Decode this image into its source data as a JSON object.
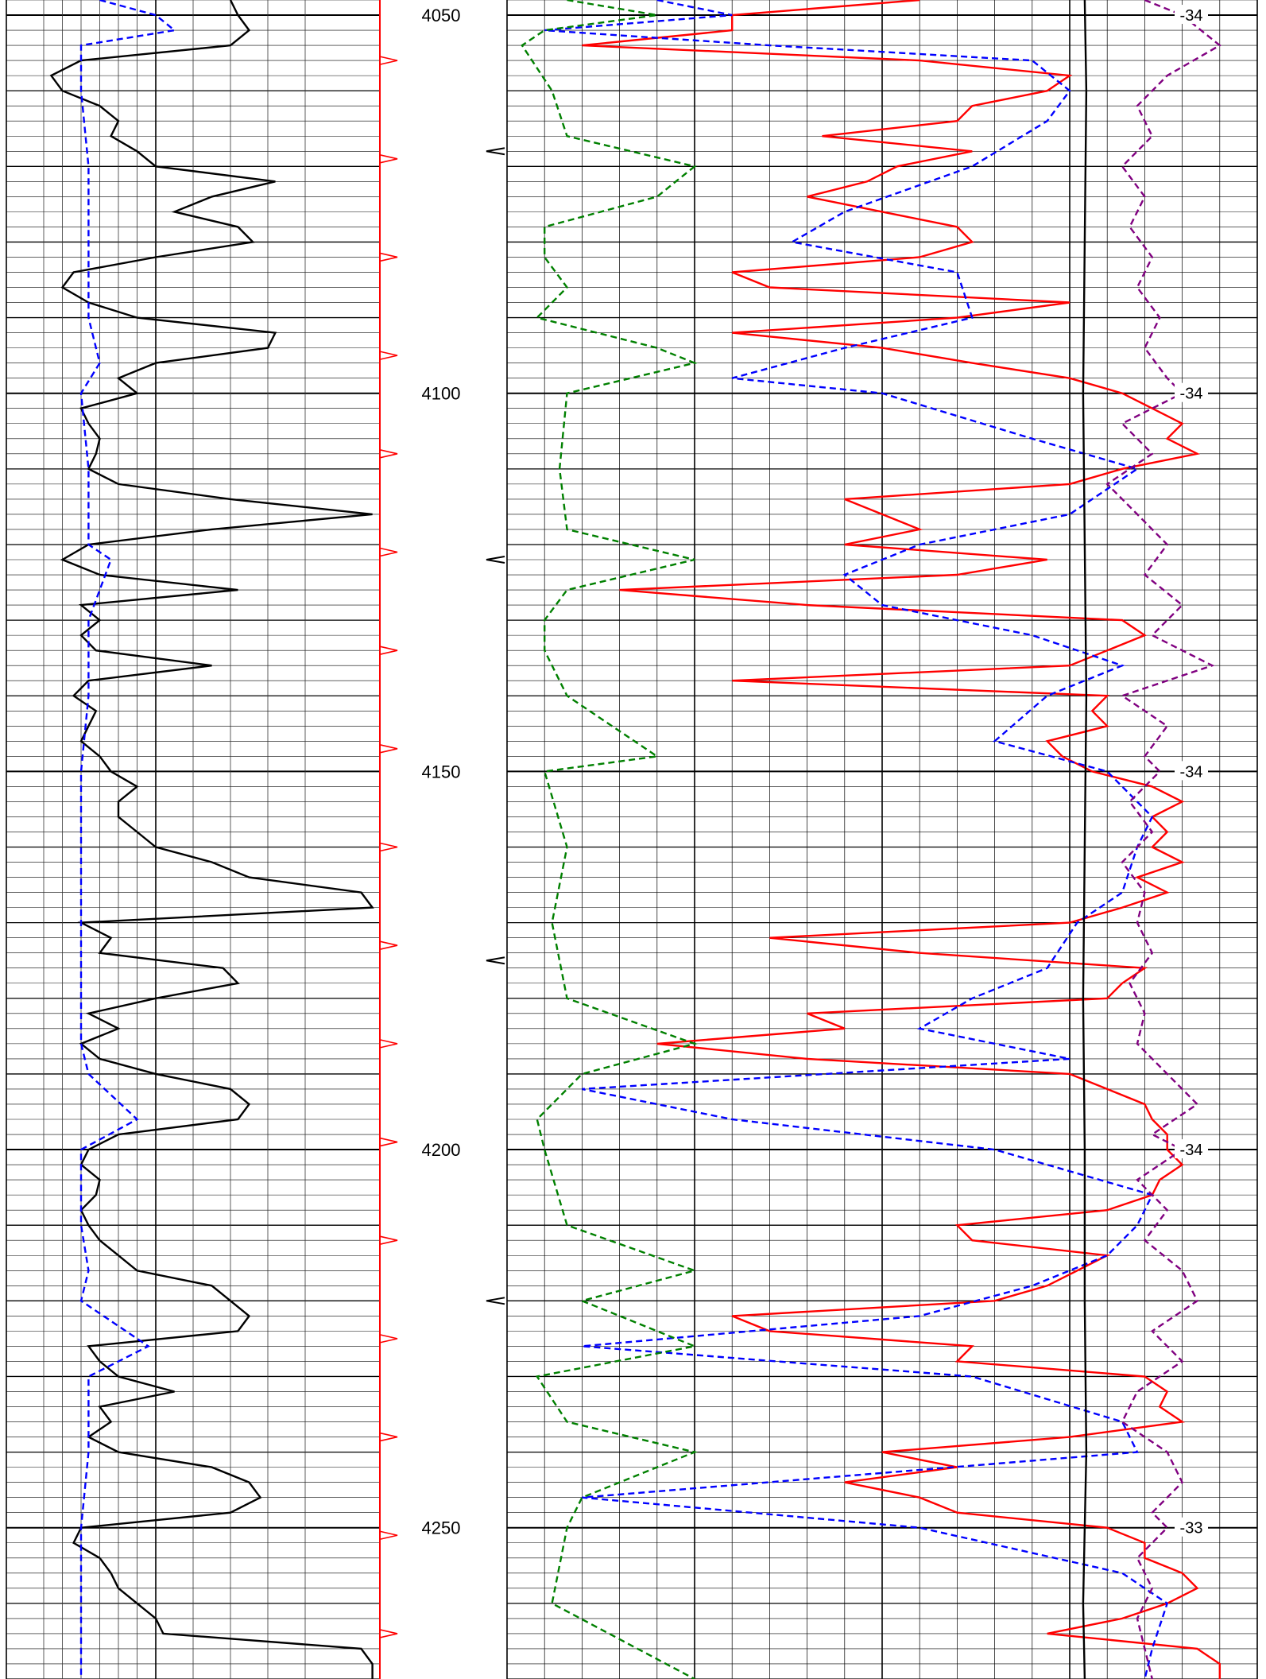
{
  "chart_data": {
    "type": "line",
    "title": "",
    "depth_axis": {
      "range": [
        4048,
        4270
      ],
      "major_ticks": [
        4050,
        4100,
        4150,
        4200,
        4250
      ],
      "labels": [
        "4050",
        "4100",
        "4150",
        "4200",
        "4250"
      ]
    },
    "tracks": [
      {
        "name": "track-1",
        "series": [
          {
            "style": "solid",
            "color": "#000000",
            "depth": [
              4048,
              4050,
              4052,
              4054,
              4056,
              4058,
              4060,
              4062,
              4064,
              4066,
              4068,
              4070,
              4072,
              4074,
              4076,
              4078,
              4080,
              4082,
              4084,
              4086,
              4088,
              4090,
              4092,
              4094,
              4096,
              4098,
              4100,
              4102,
              4104,
              4106,
              4108,
              4110,
              4112,
              4114,
              4116,
              4118,
              4120,
              4122,
              4124,
              4126,
              4128,
              4130,
              4132,
              4134,
              4136,
              4138,
              4140,
              4142,
              4144,
              4146,
              4148,
              4150,
              4152,
              4154,
              4156,
              4158,
              4160,
              4162,
              4164,
              4166,
              4168,
              4170,
              4172,
              4174,
              4176,
              4178,
              4180,
              4182,
              4184,
              4186,
              4188,
              4190,
              4192,
              4194,
              4196,
              4198,
              4200,
              4202,
              4204,
              4206,
              4208,
              4210,
              4212,
              4214,
              4216,
              4218,
              4220,
              4222,
              4224,
              4226,
              4228,
              4230,
              4232,
              4234,
              4236,
              4238,
              4240,
              4242,
              4244,
              4246,
              4248,
              4250,
              4252,
              4254,
              4256,
              4258,
              4260,
              4262,
              4264,
              4266,
              4268,
              4270
            ],
            "value": [
              0.6,
              0.62,
              0.65,
              0.6,
              0.2,
              0.12,
              0.15,
              0.25,
              0.3,
              0.28,
              0.35,
              0.4,
              0.72,
              0.55,
              0.45,
              0.62,
              0.66,
              0.4,
              0.18,
              0.15,
              0.22,
              0.35,
              0.72,
              0.7,
              0.4,
              0.3,
              0.35,
              0.2,
              0.22,
              0.25,
              0.24,
              0.22,
              0.3,
              0.6,
              0.98,
              0.55,
              0.22,
              0.15,
              0.25,
              0.62,
              0.2,
              0.25,
              0.2,
              0.24,
              0.55,
              0.22,
              0.18,
              0.24,
              0.22,
              0.2,
              0.25,
              0.28,
              0.35,
              0.3,
              0.3,
              0.35,
              0.4,
              0.55,
              0.65,
              0.95,
              0.98,
              0.2,
              0.28,
              0.25,
              0.58,
              0.62,
              0.4,
              0.22,
              0.3,
              0.2,
              0.25,
              0.4,
              0.6,
              0.65,
              0.62,
              0.3,
              0.22,
              0.2,
              0.25,
              0.24,
              0.2,
              0.22,
              0.25,
              0.3,
              0.35,
              0.55,
              0.6,
              0.65,
              0.62,
              0.22,
              0.25,
              0.3,
              0.45,
              0.25,
              0.28,
              0.22,
              0.3,
              0.55,
              0.65,
              0.68,
              0.6,
              0.2,
              0.18,
              0.25,
              0.28,
              0.3,
              0.35,
              0.4,
              0.42,
              0.95,
              0.98,
              0.98
            ]
          },
          {
            "style": "dashed",
            "color": "#0000ff",
            "depth": [
              4048,
              4050,
              4052,
              4054,
              4060,
              4070,
              4080,
              4090,
              4096,
              4100,
              4110,
              4120,
              4122,
              4126,
              4130,
              4140,
              4150,
              4160,
              4170,
              4180,
              4186,
              4190,
              4196,
              4200,
              4210,
              4216,
              4220,
              4226,
              4230,
              4240,
              4250,
              4260,
              4270
            ],
            "value": [
              0.25,
              0.4,
              0.45,
              0.2,
              0.2,
              0.22,
              0.22,
              0.22,
              0.25,
              0.2,
              0.22,
              0.22,
              0.28,
              0.25,
              0.22,
              0.22,
              0.2,
              0.2,
              0.2,
              0.2,
              0.2,
              0.22,
              0.35,
              0.2,
              0.2,
              0.22,
              0.2,
              0.38,
              0.22,
              0.22,
              0.2,
              0.2,
              0.2
            ]
          }
        ]
      },
      {
        "name": "track-2",
        "series": [
          {
            "style": "solid",
            "color": "#ff0000",
            "depth": [
              4048,
              4050,
              4052,
              4054,
              4056,
              4058,
              4060,
              4062,
              4064,
              4066,
              4068,
              4070,
              4072,
              4074,
              4076,
              4078,
              4080,
              4082,
              4084,
              4086,
              4088,
              4090,
              4092,
              4094,
              4096,
              4098,
              4100,
              4102,
              4104,
              4106,
              4108,
              4110,
              4112,
              4114,
              4116,
              4118,
              4120,
              4122,
              4124,
              4126,
              4128,
              4130,
              4132,
              4134,
              4136,
              4138,
              4140,
              4142,
              4144,
              4146,
              4148,
              4150,
              4152,
              4154,
              4156,
              4158,
              4160,
              4162,
              4164,
              4166,
              4168,
              4170,
              4172,
              4174,
              4176,
              4178,
              4180,
              4182,
              4184,
              4186,
              4188,
              4190,
              4192,
              4194,
              4196,
              4198,
              4200,
              4202,
              4204,
              4206,
              4208,
              4210,
              4212,
              4214,
              4216,
              4218,
              4220,
              4222,
              4224,
              4226,
              4228,
              4230,
              4232,
              4234,
              4236,
              4238,
              4240,
              4242,
              4244,
              4246,
              4248,
              4250,
              4252,
              4254,
              4256,
              4258,
              4260,
              4262,
              4264,
              4266,
              4268,
              4270
            ],
            "value": [
              0.55,
              0.3,
              0.3,
              0.1,
              0.55,
              0.75,
              0.72,
              0.62,
              0.6,
              0.42,
              0.62,
              0.52,
              0.48,
              0.4,
              0.5,
              0.6,
              0.62,
              0.55,
              0.3,
              0.35,
              0.75,
              0.6,
              0.3,
              0.5,
              0.62,
              0.75,
              0.82,
              0.86,
              0.9,
              0.88,
              0.92,
              0.82,
              0.75,
              0.45,
              0.5,
              0.55,
              0.45,
              0.72,
              0.6,
              0.15,
              0.4,
              0.82,
              0.85,
              0.8,
              0.75,
              0.3,
              0.8,
              0.78,
              0.8,
              0.72,
              0.74,
              0.78,
              0.86,
              0.9,
              0.86,
              0.88,
              0.86,
              0.9,
              0.84,
              0.88,
              0.82,
              0.75,
              0.35,
              0.55,
              0.85,
              0.82,
              0.8,
              0.4,
              0.45,
              0.2,
              0.4,
              0.75,
              0.8,
              0.85,
              0.86,
              0.88,
              0.88,
              0.9,
              0.87,
              0.86,
              0.8,
              0.6,
              0.62,
              0.8,
              0.76,
              0.72,
              0.65,
              0.3,
              0.35,
              0.62,
              0.6,
              0.85,
              0.88,
              0.87,
              0.9,
              0.75,
              0.5,
              0.6,
              0.45,
              0.55,
              0.6,
              0.8,
              0.85,
              0.85,
              0.9,
              0.92,
              0.88,
              0.82,
              0.72,
              0.92,
              0.95,
              0.95
            ]
          },
          {
            "style": "dashed",
            "color": "#0000ff",
            "depth": [
              4048,
              4050,
              4052,
              4054,
              4056,
              4060,
              4064,
              4070,
              4076,
              4080,
              4084,
              4090,
              4094,
              4098,
              4100,
              4106,
              4110,
              4116,
              4120,
              4124,
              4128,
              4132,
              4136,
              4140,
              4146,
              4150,
              4156,
              4160,
              4166,
              4170,
              4176,
              4180,
              4184,
              4188,
              4192,
              4196,
              4200,
              4206,
              4210,
              4214,
              4218,
              4222,
              4226,
              4230,
              4236,
              4240,
              4246,
              4250,
              4256,
              4260,
              4266,
              4270
            ],
            "value": [
              0.2,
              0.3,
              0.05,
              0.35,
              0.7,
              0.75,
              0.72,
              0.62,
              0.45,
              0.38,
              0.6,
              0.62,
              0.45,
              0.3,
              0.5,
              0.7,
              0.84,
              0.75,
              0.55,
              0.45,
              0.5,
              0.7,
              0.82,
              0.72,
              0.65,
              0.8,
              0.86,
              0.84,
              0.82,
              0.76,
              0.72,
              0.62,
              0.55,
              0.75,
              0.1,
              0.3,
              0.65,
              0.86,
              0.84,
              0.8,
              0.7,
              0.55,
              0.1,
              0.62,
              0.82,
              0.84,
              0.1,
              0.55,
              0.82,
              0.88,
              0.86,
              0.85
            ]
          },
          {
            "style": "dashed",
            "color": "#008000",
            "depth": [
              4048,
              4050,
              4052,
              4054,
              4060,
              4066,
              4070,
              4074,
              4078,
              4082,
              4086,
              4090,
              4094,
              4096,
              4100,
              4110,
              4118,
              4122,
              4126,
              4130,
              4134,
              4140,
              4148,
              4150,
              4160,
              4170,
              4180,
              4186,
              4190,
              4196,
              4200,
              4210,
              4216,
              4220,
              4226,
              4230,
              4236,
              4240,
              4246,
              4250,
              4260,
              4270
            ],
            "value": [
              0.08,
              0.2,
              0.05,
              0.02,
              0.06,
              0.08,
              0.25,
              0.2,
              0.05,
              0.05,
              0.08,
              0.04,
              0.2,
              0.25,
              0.08,
              0.07,
              0.08,
              0.25,
              0.08,
              0.05,
              0.05,
              0.08,
              0.2,
              0.05,
              0.08,
              0.06,
              0.08,
              0.25,
              0.1,
              0.04,
              0.05,
              0.08,
              0.25,
              0.1,
              0.25,
              0.04,
              0.08,
              0.25,
              0.1,
              0.08,
              0.06,
              0.25
            ]
          },
          {
            "style": "dashed",
            "color": "#800080",
            "depth": [
              4048,
              4050,
              4054,
              4058,
              4062,
              4066,
              4070,
              4074,
              4078,
              4082,
              4086,
              4090,
              4094,
              4098,
              4100,
              4104,
              4108,
              4112,
              4116,
              4120,
              4124,
              4128,
              4132,
              4136,
              4140,
              4144,
              4148,
              4150,
              4154,
              4158,
              4162,
              4166,
              4170,
              4174,
              4178,
              4182,
              4186,
              4190,
              4194,
              4198,
              4200,
              4204,
              4208,
              4212,
              4216,
              4220,
              4224,
              4228,
              4232,
              4236,
              4240,
              4244,
              4248,
              4250,
              4254,
              4258,
              4262,
              4266,
              4270
            ],
            "value": [
              0.85,
              0.9,
              0.95,
              0.88,
              0.84,
              0.86,
              0.82,
              0.85,
              0.83,
              0.86,
              0.84,
              0.87,
              0.85,
              0.88,
              0.9,
              0.82,
              0.86,
              0.8,
              0.84,
              0.88,
              0.85,
              0.9,
              0.86,
              0.94,
              0.82,
              0.88,
              0.85,
              0.87,
              0.83,
              0.86,
              0.82,
              0.85,
              0.84,
              0.86,
              0.83,
              0.85,
              0.84,
              0.88,
              0.92,
              0.86,
              0.9,
              0.84,
              0.88,
              0.85,
              0.9,
              0.92,
              0.86,
              0.9,
              0.84,
              0.82,
              0.88,
              0.9,
              0.86,
              0.88,
              0.84,
              0.86,
              0.84,
              0.85,
              0.86
            ]
          },
          {
            "style": "solid",
            "color": "#000000",
            "depth": [
              4048,
              4060,
              4080,
              4100,
              4120,
              4140,
              4160,
              4180,
              4200,
              4220,
              4240,
              4260,
              4270
            ],
            "value": [
              0.0,
              0.01,
              0.0,
              -0.01,
              0.0,
              0.01,
              0.0,
              -0.01,
              0.0,
              0.0,
              0.01,
              -0.01,
              0.0
            ]
          }
        ]
      }
    ],
    "right_scale_labels": [
      {
        "depth": 4050,
        "label": "-34"
      },
      {
        "depth": 4100,
        "label": "-34"
      },
      {
        "depth": 4150,
        "label": "-34"
      },
      {
        "depth": 4200,
        "label": "-34"
      },
      {
        "depth": 4250,
        "label": "-33"
      }
    ],
    "grid": true,
    "legend": "none"
  }
}
